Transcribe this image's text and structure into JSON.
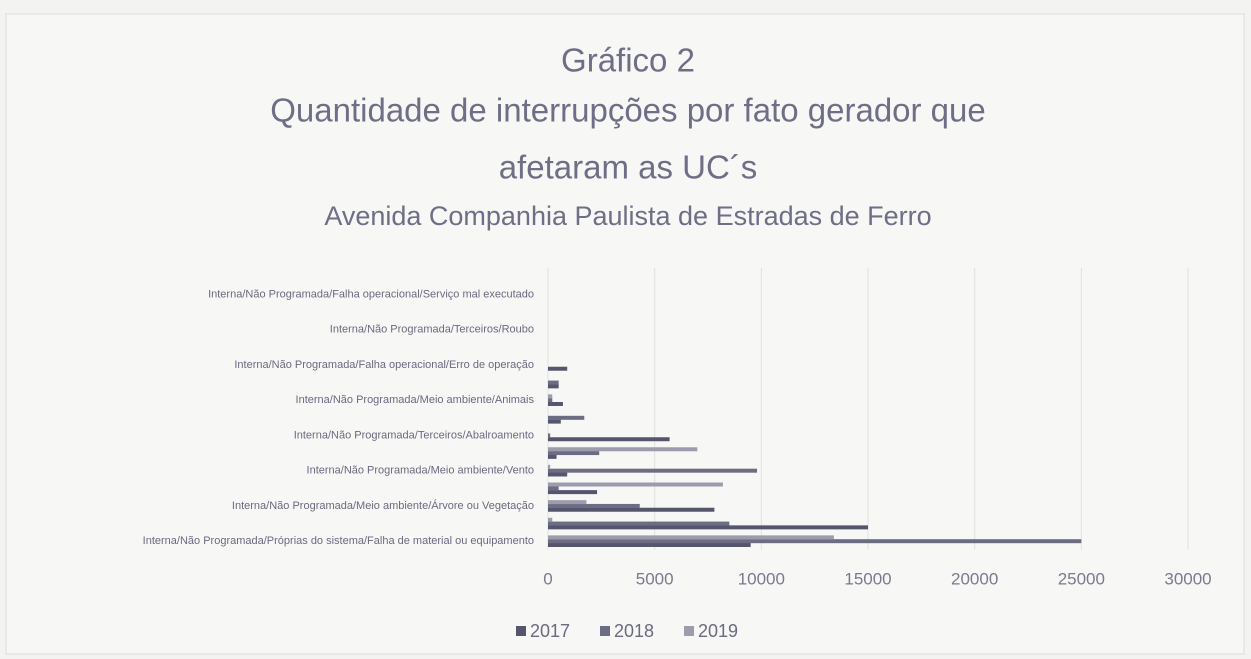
{
  "chart_data": {
    "type": "barh",
    "title": [
      "Gráfico 2",
      "Quantidade de interrupções por fato gerador que",
      "afetaram as UC´s"
    ],
    "subtitle": "Avenida Companhia Paulista de Estradas de Ferro",
    "categories": [
      "Interna/Não Programada/Próprias do sistema/Falha de material ou equipamento",
      null,
      "Interna/Não Programada/Meio ambiente/Árvore ou Vegetação",
      null,
      "Interna/Não Programada/Meio ambiente/Vento",
      null,
      "Interna/Não Programada/Terceiros/Abalroamento",
      null,
      "Interna/Não Programada/Meio ambiente/Animais",
      null,
      "Interna/Não Programada/Falha operacional/Erro de operação",
      null,
      "Interna/Não Programada/Terceiros/Roubo",
      null,
      "Interna/Não Programada/Falha operacional/Serviço mal executado",
      null
    ],
    "series": [
      {
        "name": "2017",
        "color": "#55556e",
        "values": [
          9500,
          15000,
          7800,
          2300,
          900,
          400,
          5700,
          600,
          700,
          500,
          900,
          0,
          0,
          0,
          0,
          0
        ]
      },
      {
        "name": "2018",
        "color": "#6c6c82",
        "values": [
          25000,
          8500,
          4300,
          500,
          9800,
          2400,
          100,
          1700,
          200,
          500,
          0,
          0,
          0,
          0,
          0,
          0
        ]
      },
      {
        "name": "2019",
        "color": "#9c9cac",
        "values": [
          13400,
          200,
          1800,
          8200,
          100,
          7000,
          0,
          0,
          200,
          0,
          0,
          0,
          0,
          0,
          0,
          0
        ]
      }
    ],
    "xlim": [
      0,
      30000
    ],
    "xticks": [
      0,
      5000,
      10000,
      15000,
      20000,
      25000,
      30000
    ],
    "grid": true,
    "legend": "bottom"
  }
}
